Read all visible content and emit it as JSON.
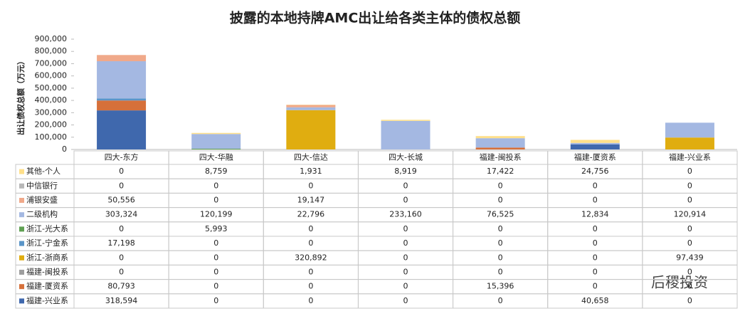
{
  "chart_data": {
    "type": "stacked-bar-table",
    "title": "披露的本地持牌AMC出让给各类主体的债权总额",
    "y_label": "出让债权总额（万元）",
    "categories": [
      "四大-东方",
      "四大-华融",
      "四大-信达",
      "四大-长城",
      "福建-闽投系",
      "福建-厦资系",
      "福建-兴业系"
    ],
    "series": [
      {
        "name": "其他-个人",
        "color": "#ffe08a",
        "values": [
          0,
          8759,
          1931,
          8919,
          17422,
          24756,
          0
        ],
        "value_labels": [
          "0",
          "8,759",
          "1,931",
          "8,919",
          "17,422",
          "24,756",
          "0"
        ]
      },
      {
        "name": "中信银行",
        "color": "#b7b7b7",
        "values": [
          0,
          0,
          0,
          0,
          0,
          0,
          0
        ],
        "value_labels": [
          "0",
          "0",
          "0",
          "0",
          "0",
          "0",
          "0"
        ]
      },
      {
        "name": "浦银安盛",
        "color": "#f0a98a",
        "values": [
          50556,
          0,
          19147,
          0,
          0,
          0,
          0
        ],
        "value_labels": [
          "50,556",
          "0",
          "19,147",
          "0",
          "0",
          "0",
          "0"
        ]
      },
      {
        "name": "二级机构",
        "color": "#a4b8e2",
        "values": [
          303324,
          120199,
          22796,
          233160,
          76525,
          12834,
          120914
        ],
        "value_labels": [
          "303,324",
          "120,199",
          "22,796",
          "233,160",
          "76,525",
          "12,834",
          "120,914"
        ]
      },
      {
        "name": "浙江-光大系",
        "color": "#5fa052",
        "values": [
          0,
          5993,
          0,
          0,
          0,
          0,
          0
        ],
        "value_labels": [
          "0",
          "5,993",
          "0",
          "0",
          "0",
          "0",
          "0"
        ]
      },
      {
        "name": "浙江-宁金系",
        "color": "#5a95c8",
        "values": [
          17198,
          0,
          0,
          0,
          0,
          0,
          0
        ],
        "value_labels": [
          "17,198",
          "0",
          "0",
          "0",
          "0",
          "0",
          "0"
        ]
      },
      {
        "name": "浙江-浙商系",
        "color": "#e0ad10",
        "values": [
          0,
          0,
          320892,
          0,
          0,
          0,
          97439
        ],
        "value_labels": [
          "0",
          "0",
          "320,892",
          "0",
          "0",
          "0",
          "97,439"
        ]
      },
      {
        "name": "福建-闽投系",
        "color": "#9e9e9e",
        "values": [
          0,
          0,
          0,
          0,
          0,
          0,
          0
        ],
        "value_labels": [
          "0",
          "0",
          "0",
          "0",
          "0",
          "0",
          "0"
        ]
      },
      {
        "name": "福建-厦资系",
        "color": "#d6703a",
        "values": [
          80793,
          0,
          0,
          0,
          15396,
          0,
          0
        ],
        "value_labels": [
          "80,793",
          "0",
          "0",
          "0",
          "15,396",
          "0",
          "0"
        ]
      },
      {
        "name": "福建-兴业系",
        "color": "#3f68ad",
        "values": [
          318594,
          0,
          0,
          0,
          0,
          40658,
          0
        ],
        "value_labels": [
          "318,594",
          "0",
          "0",
          "0",
          "0",
          "40,658",
          "0"
        ]
      }
    ],
    "ylim": [
      0,
      900000
    ],
    "yticks": [
      0,
      {
        "value": 100000,
        "label": "100,000"
      },
      {
        "value": 200000,
        "label": "200,000"
      },
      {
        "value": 300000,
        "label": "300,000"
      },
      {
        "value": 400000,
        "label": "400,000"
      },
      {
        "value": 500000,
        "label": "500,000"
      },
      {
        "value": 600000,
        "label": "600,000"
      },
      {
        "value": 700000,
        "label": "700,000"
      },
      {
        "value": 800000,
        "label": "800,000"
      },
      {
        "value": 900000,
        "label": "900,000"
      }
    ]
  },
  "watermark": "后稷投资"
}
